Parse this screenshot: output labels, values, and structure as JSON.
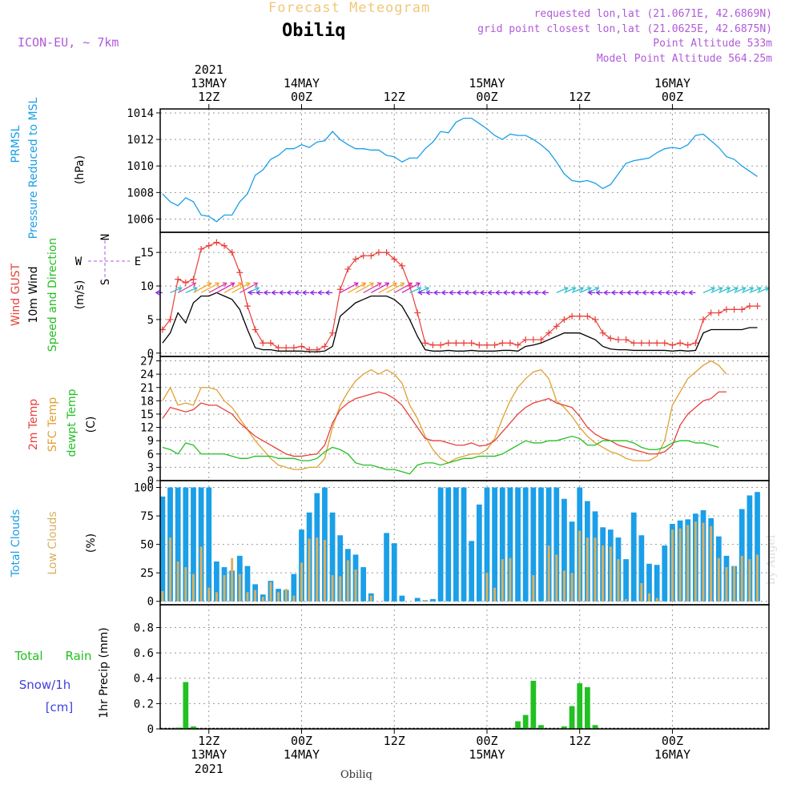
{
  "header": {
    "title": "Forecast Meteogram",
    "location": "Obiliq",
    "model": "ICON-EU, ~ 7km",
    "requested": "requested lon,lat (21.0671E, 42.6869N)",
    "gridpoint": "grid point closest lon,lat (21.0625E, 42.6875N)",
    "point_altitude": "Point Altitude 533m",
    "model_altitude": "Model Point Altitude 564.25m"
  },
  "footer": {
    "location": "Obiliq",
    "watermark": "by Angel"
  },
  "colors": {
    "pressure": "#1a9fe8",
    "gust": "#e8403a",
    "wind": "#000000",
    "temp2m": "#e8403a",
    "sfctemp": "#e0a030",
    "dewpt": "#22c022",
    "total_clouds": "#1a9fe8",
    "low_clouds": "#d8b060",
    "rain": "#22c022",
    "snow": "#4040e0",
    "purple": "#b05ad8"
  },
  "time_axis": {
    "top_labels": [
      {
        "t": 12,
        "l1": "2021",
        "l2": "13MAY",
        "l3": "12Z"
      },
      {
        "t": 24,
        "l1": "",
        "l2": "14MAY",
        "l3": "00Z"
      },
      {
        "t": 36,
        "l1": "",
        "l2": "",
        "l3": "12Z"
      },
      {
        "t": 48,
        "l1": "",
        "l2": "15MAY",
        "l3": "00Z"
      },
      {
        "t": 60,
        "l1": "",
        "l2": "",
        "l3": "12Z"
      },
      {
        "t": 72,
        "l1": "",
        "l2": "16MAY",
        "l3": "00Z"
      }
    ],
    "bottom_labels": [
      {
        "t": 12,
        "l1": "12Z",
        "l2": "13MAY",
        "l3": "2021"
      },
      {
        "t": 24,
        "l1": "00Z",
        "l2": "14MAY",
        "l3": ""
      },
      {
        "t": 36,
        "l1": "12Z",
        "l2": "",
        "l3": ""
      },
      {
        "t": 48,
        "l1": "00Z",
        "l2": "15MAY",
        "l3": ""
      },
      {
        "t": 60,
        "l1": "12Z",
        "l2": "",
        "l3": ""
      },
      {
        "t": 72,
        "l1": "00Z",
        "l2": "16MAY",
        "l3": ""
      }
    ]
  },
  "panel_labels": {
    "pressure": [
      "PRMSL",
      "Pressure Reduced to MSL",
      "(hPa)"
    ],
    "wind": [
      "Wind GUST",
      "10m Wind",
      "Speed and Direction",
      "(m/s)"
    ],
    "compass": {
      "n": "N",
      "s": "S",
      "w": "W",
      "e": "E"
    },
    "temp": [
      "2m Temp",
      "SFC Temp",
      "dewpt Temp",
      "(C)"
    ],
    "clouds": [
      "Total Clouds",
      "Low Clouds",
      "(%)"
    ],
    "precip": {
      "total": "Total",
      "rain": "Rain",
      "snow": "Snow/1h",
      "cm": "[cm]",
      "axis": "1hr Precip (mm)"
    }
  },
  "chart_data": [
    {
      "type": "line",
      "name": "PRMSL",
      "ylim": [
        1005,
        1014.3
      ],
      "yticks": [
        1006,
        1008,
        1010,
        1012,
        1014
      ],
      "x": [
        6,
        7,
        8,
        9,
        10,
        11,
        12,
        13,
        14,
        15,
        16,
        17,
        18,
        19,
        20,
        21,
        22,
        23,
        24,
        25,
        26,
        27,
        28,
        29,
        30,
        31,
        32,
        33,
        34,
        35,
        36,
        37,
        38,
        39,
        40,
        41,
        42,
        43,
        44,
        45,
        46,
        47,
        48,
        49,
        50,
        51,
        52,
        53,
        54,
        55,
        56,
        57,
        58,
        59,
        60,
        61,
        62,
        63,
        64,
        65,
        66,
        67,
        68,
        69,
        70,
        71,
        72,
        73,
        74,
        75,
        76,
        77,
        78,
        79,
        80,
        81,
        82,
        83
      ],
      "values": [
        1007.9,
        1007.3,
        1007.0,
        1007.6,
        1007.3,
        1006.3,
        1006.2,
        1005.8,
        1006.3,
        1006.3,
        1007.3,
        1007.9,
        1009.3,
        1009.7,
        1010.5,
        1010.8,
        1011.3,
        1011.3,
        1011.6,
        1011.4,
        1011.8,
        1011.9,
        1012.6,
        1012.0,
        1011.6,
        1011.3,
        1011.3,
        1011.2,
        1011.2,
        1010.8,
        1010.7,
        1010.3,
        1010.6,
        1010.6,
        1011.3,
        1011.8,
        1012.6,
        1012.5,
        1013.3,
        1013.6,
        1013.6,
        1013.2,
        1012.8,
        1012.3,
        1012.0,
        1012.4,
        1012.3,
        1012.3,
        1012.0,
        1011.6,
        1011.1,
        1010.3,
        1009.4,
        1008.9,
        1008.8,
        1008.9,
        1008.7,
        1008.3,
        1008.6,
        1009.4,
        1010.2,
        1010.4,
        1010.5,
        1010.6,
        1011.0,
        1011.3,
        1011.4,
        1011.3,
        1011.6,
        1012.3,
        1012.4,
        1011.9,
        1011.4,
        1010.7,
        1010.5,
        1010.0,
        1009.6,
        1009.2
      ]
    },
    {
      "type": "line",
      "name": "Wind",
      "ylim": [
        -0.5,
        18
      ],
      "yticks": [
        0,
        5,
        10,
        15
      ],
      "x": [
        6,
        7,
        8,
        9,
        10,
        11,
        12,
        13,
        14,
        15,
        16,
        17,
        18,
        19,
        20,
        21,
        22,
        23,
        24,
        25,
        26,
        27,
        28,
        29,
        30,
        31,
        32,
        33,
        34,
        35,
        36,
        37,
        38,
        39,
        40,
        41,
        42,
        43,
        44,
        45,
        46,
        47,
        48,
        49,
        50,
        51,
        52,
        53,
        54,
        55,
        56,
        57,
        58,
        59,
        60,
        61,
        62,
        63,
        64,
        65,
        66,
        67,
        68,
        69,
        70,
        71,
        72,
        73,
        74,
        75,
        76,
        77,
        78,
        79,
        80,
        81,
        82,
        83
      ],
      "gust": [
        3.5,
        5,
        11,
        10.5,
        11,
        15.5,
        16,
        16.5,
        16,
        15,
        12,
        7,
        3.5,
        1.5,
        1.5,
        0.8,
        0.8,
        0.8,
        1,
        0.5,
        0.5,
        1,
        3,
        9.5,
        12.5,
        14,
        14.5,
        14.5,
        15,
        15,
        14,
        13,
        10,
        6,
        1.5,
        1.2,
        1.2,
        1.5,
        1.5,
        1.5,
        1.5,
        1.2,
        1.2,
        1.2,
        1.5,
        1.5,
        1.2,
        2,
        2,
        2,
        3,
        4,
        5,
        5.5,
        5.5,
        5.5,
        5,
        3,
        2.2,
        2,
        2,
        1.5,
        1.5,
        1.5,
        1.5,
        1.5,
        1.2,
        1.5,
        1.2,
        1.5,
        5,
        6,
        6,
        6.5,
        6.5,
        6.5,
        7,
        7
      ],
      "wind": [
        1.5,
        3,
        6,
        4.5,
        7.5,
        8.5,
        8.5,
        9,
        8.5,
        8,
        6.5,
        3.5,
        0.8,
        0.5,
        0.5,
        0.3,
        0.3,
        0.3,
        0.3,
        0.2,
        0.2,
        0.3,
        1,
        5.5,
        6.5,
        7.5,
        8,
        8.5,
        8.5,
        8.5,
        8,
        7,
        5,
        2.5,
        0.5,
        0.3,
        0.3,
        0.4,
        0.3,
        0.3,
        0.4,
        0.3,
        0.3,
        0.3,
        0.4,
        0.4,
        0.3,
        1,
        1.2,
        1.5,
        2,
        2.5,
        3,
        3,
        3,
        2.5,
        2,
        1,
        0.6,
        0.5,
        0.5,
        0.4,
        0.4,
        0.4,
        0.4,
        0.4,
        0.3,
        0.4,
        0.3,
        0.4,
        3,
        3.5,
        3.5,
        3.5,
        3.5,
        3.5,
        3.8,
        3.8
      ]
    },
    {
      "type": "line",
      "name": "Temperature",
      "ylim": [
        0,
        28
      ],
      "yticks": [
        0,
        3,
        6,
        9,
        12,
        15,
        18,
        21,
        24,
        27
      ],
      "x": [
        6,
        7,
        8,
        9,
        10,
        11,
        12,
        13,
        14,
        15,
        16,
        17,
        18,
        19,
        20,
        21,
        22,
        23,
        24,
        25,
        26,
        27,
        28,
        29,
        30,
        31,
        32,
        33,
        34,
        35,
        36,
        37,
        38,
        39,
        40,
        41,
        42,
        43,
        44,
        45,
        46,
        47,
        48,
        49,
        50,
        51,
        52,
        53,
        54,
        55,
        56,
        57,
        58,
        59,
        60,
        61,
        62,
        63,
        64,
        65,
        66,
        67,
        68,
        69,
        70,
        71,
        72,
        73,
        74,
        75,
        76,
        77,
        78,
        79,
        80,
        81,
        82,
        83
      ],
      "t2m": [
        14,
        16.5,
        16,
        15.5,
        16,
        17.5,
        17,
        17,
        16,
        15,
        13,
        11.5,
        10,
        9,
        8,
        7,
        6,
        5.5,
        5.5,
        5.8,
        6,
        8,
        13,
        16,
        17.5,
        18.5,
        19,
        19.5,
        20,
        19.5,
        18.5,
        17,
        14.5,
        12,
        9.5,
        9,
        9,
        8.5,
        8,
        8,
        8.5,
        7.8,
        8,
        9,
        11,
        13,
        15,
        16.5,
        17.5,
        18,
        18.5,
        17.5,
        17,
        16.5,
        14.5,
        12,
        10.5,
        9.5,
        9,
        8,
        7.5,
        7,
        6.5,
        6,
        6,
        6.5,
        8,
        12.5,
        15,
        16.5,
        18,
        18.5,
        20,
        20
      ],
      "sfc": [
        18,
        21,
        17,
        17.5,
        17,
        21,
        21,
        20.5,
        18,
        16.5,
        14,
        11.5,
        9,
        7,
        5,
        3.5,
        3,
        2.5,
        2.5,
        3,
        3,
        5,
        12,
        17,
        20,
        22.5,
        24,
        25,
        24,
        25,
        24,
        22,
        17,
        14,
        10,
        7,
        5,
        4,
        5,
        5.5,
        6,
        6,
        7,
        9.5,
        14,
        18,
        21,
        23,
        24.5,
        25,
        23,
        18,
        16.5,
        14.5,
        12,
        10,
        8.5,
        7.5,
        6.5,
        6,
        5,
        4.5,
        4.5,
        4.5,
        5.5,
        9,
        17,
        20,
        23,
        24.5,
        26,
        27,
        26,
        24
      ],
      "dew": [
        7.5,
        7,
        6,
        8.5,
        8,
        6,
        6,
        6,
        6,
        5.5,
        5,
        5,
        5.5,
        5.5,
        5.5,
        5,
        5,
        5,
        4.5,
        4.5,
        5,
        6.5,
        7.5,
        7,
        6,
        4,
        3.5,
        3.5,
        3,
        2.5,
        2.5,
        2,
        1.5,
        3.5,
        4,
        4,
        3.5,
        4,
        4.5,
        5,
        5,
        5.5,
        5.5,
        5.5,
        6,
        7,
        8,
        9,
        8.5,
        8.5,
        9,
        9,
        9.5,
        10,
        9.5,
        8,
        8,
        9,
        9,
        9,
        9,
        8.5,
        7.5,
        7,
        7,
        7.5,
        8.5,
        9,
        9,
        8.5,
        8.5,
        8,
        7.5
      ]
    },
    {
      "type": "bar",
      "name": "Clouds",
      "ylim": [
        -3,
        106
      ],
      "yticks": [
        0,
        25,
        50,
        75,
        100
      ],
      "x": [
        6,
        7,
        8,
        9,
        10,
        11,
        12,
        13,
        14,
        15,
        16,
        17,
        18,
        19,
        20,
        21,
        22,
        23,
        24,
        25,
        26,
        27,
        28,
        29,
        30,
        31,
        32,
        33,
        34,
        35,
        36,
        37,
        38,
        39,
        40,
        41,
        42,
        43,
        44,
        45,
        46,
        47,
        48,
        49,
        50,
        51,
        52,
        53,
        54,
        55,
        56,
        57,
        58,
        59,
        60,
        61,
        62,
        63,
        64,
        65,
        66,
        67,
        68,
        69,
        70,
        71,
        72,
        73,
        74,
        75,
        76,
        77,
        78,
        79,
        80,
        81,
        82,
        83
      ],
      "total": [
        92,
        100,
        100,
        100,
        100,
        100,
        100,
        35,
        30,
        27,
        40,
        31,
        15,
        6,
        18,
        11,
        10,
        24,
        63,
        78,
        95,
        100,
        78,
        58,
        46,
        41,
        30,
        7,
        0,
        60,
        51,
        5,
        0,
        3,
        1,
        2,
        100,
        100,
        100,
        100,
        53,
        85,
        100,
        100,
        100,
        100,
        100,
        100,
        100,
        100,
        100,
        100,
        90,
        70,
        100,
        88,
        79,
        65,
        63,
        56,
        37,
        78,
        58,
        33,
        32,
        49,
        68,
        71,
        72,
        77,
        80,
        73,
        57,
        40,
        31,
        81,
        93,
        96
      ],
      "low": [
        9,
        56,
        35,
        30,
        24,
        48,
        12,
        8,
        23,
        38,
        24,
        8,
        10,
        4,
        17,
        8,
        11,
        5,
        34,
        55,
        56,
        54,
        23,
        22,
        36,
        28,
        0,
        5,
        0,
        0,
        0,
        0,
        0,
        0,
        1,
        0,
        0,
        0,
        0,
        0,
        0,
        0,
        25,
        12,
        37,
        38,
        0,
        0,
        23,
        0,
        49,
        41,
        27,
        25,
        62,
        56,
        56,
        49,
        48,
        37,
        2,
        0,
        16,
        7,
        3,
        0,
        63,
        64,
        67,
        70,
        69,
        66,
        38,
        30,
        31,
        40,
        37,
        41
      ]
    },
    {
      "type": "bar",
      "name": "Precipitation",
      "ylim": [
        0,
        0.98
      ],
      "yticks": [
        0,
        0.2,
        0.4,
        0.6,
        0.8
      ],
      "x": [
        8,
        9,
        10,
        52,
        53,
        54,
        55,
        58,
        59,
        60,
        61,
        62
      ],
      "rain": [
        0.01,
        0.37,
        0.02,
        0.06,
        0.11,
        0.38,
        0.03,
        0.02,
        0.18,
        0.36,
        0.33,
        0.03
      ]
    }
  ]
}
